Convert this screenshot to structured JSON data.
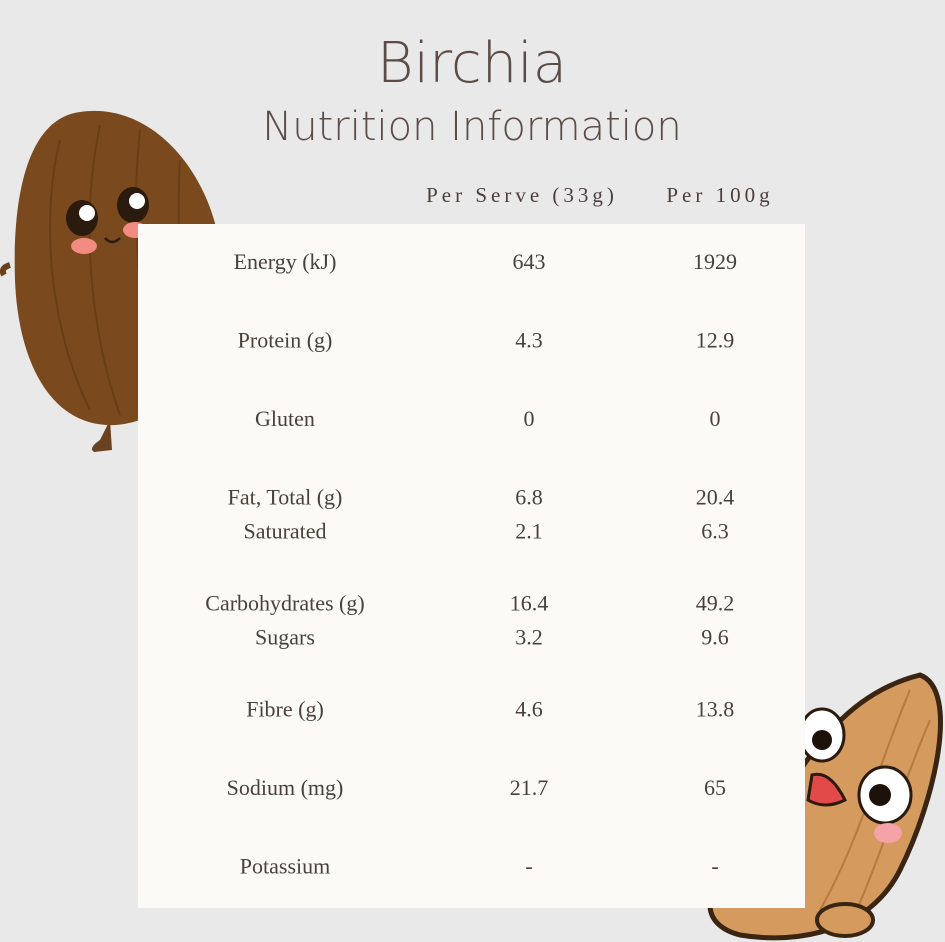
{
  "header": {
    "title": "Birchia",
    "subtitle": "Nutrition Information"
  },
  "table": {
    "columns": [
      "Per Serve (33g)",
      "Per 100g"
    ],
    "rows": [
      [
        [
          "Energy (kJ)",
          "643",
          "1929"
        ]
      ],
      [
        [
          "Protein (g)",
          "4.3",
          "12.9"
        ]
      ],
      [
        [
          "Gluten",
          "0",
          "0"
        ]
      ],
      [
        [
          "Fat, Total (g)",
          "6.8",
          "20.4"
        ],
        [
          "Saturated",
          "2.1",
          "6.3"
        ]
      ],
      [
        [
          "Carbohydrates (g)",
          "16.4",
          "49.2"
        ],
        [
          "Sugars",
          "3.2",
          "9.6"
        ]
      ],
      [
        [
          "Fibre (g)",
          "4.6",
          "13.8"
        ]
      ],
      [
        [
          "Sodium (mg)",
          "21.7",
          "65"
        ]
      ],
      [
        [
          "Potassium",
          "-",
          "-"
        ]
      ]
    ]
  }
}
